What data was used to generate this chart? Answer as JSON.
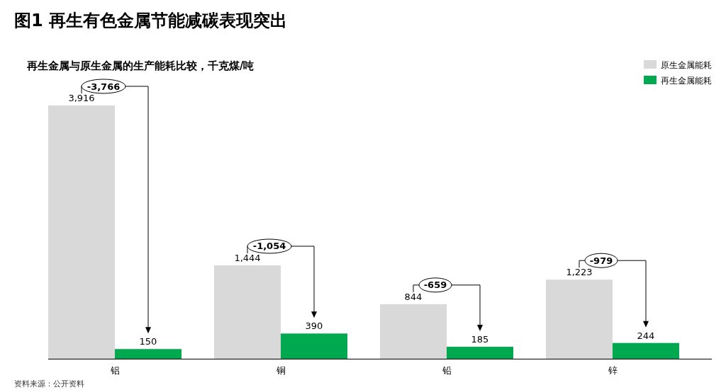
{
  "chart_data": {
    "type": "bar",
    "title": "图1  再生有色金属节能减碳表现突出",
    "subtitle": "再生金属与原生金属的生产能耗比较，千克煤/吨",
    "categories": [
      "铝",
      "铜",
      "铅",
      "锌"
    ],
    "series": [
      {
        "name": "原生金属能耗",
        "color": "#d9d9d9",
        "values": [
          3916,
          1444,
          844,
          1223
        ],
        "value_labels": [
          "3,916",
          "1,444",
          "844",
          "1,223"
        ]
      },
      {
        "name": "再生金属能耗",
        "color": "#00a84f",
        "values": [
          150,
          390,
          185,
          244
        ],
        "value_labels": [
          "150",
          "390",
          "185",
          "244"
        ]
      }
    ],
    "legend": "top right",
    "annotations": [
      {
        "text": "-3,766",
        "x": "铝",
        "y": 3916
      },
      {
        "text": "-1,054",
        "x": "铜",
        "y": 1444
      },
      {
        "text": "-659",
        "x": "铅",
        "y": 844
      },
      {
        "text": "-979",
        "x": "锌",
        "y": 1223
      },
      "资料来源：公开资料"
    ]
  }
}
